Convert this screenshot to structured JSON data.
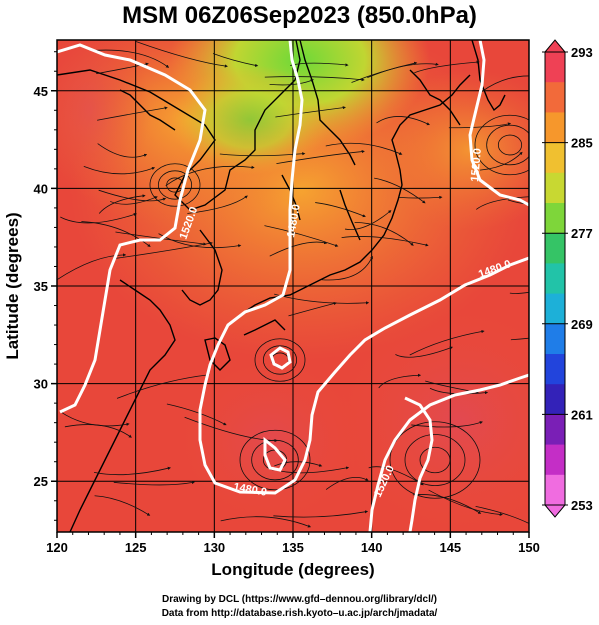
{
  "title": "MSM 06Z06Sep2023 (850.0hPa)",
  "axes": {
    "xlabel": "Longitude (degrees)",
    "ylabel": "Latitude  (degrees)",
    "xlim": [
      120,
      150
    ],
    "ylim": [
      22.4,
      47.6
    ],
    "xticks": [
      "120",
      "125",
      "130",
      "135",
      "140",
      "145",
      "150"
    ],
    "yticks": [
      "25",
      "30",
      "35",
      "40",
      "45"
    ]
  },
  "colorbar": {
    "min": 253,
    "max": 293,
    "labels": [
      "293",
      "285",
      "277",
      "269",
      "261",
      "253"
    ],
    "colors": [
      "#ef4155",
      "#f26a3a",
      "#f6972c",
      "#f0c030",
      "#c8d832",
      "#7ed63a",
      "#35c466",
      "#22c3a8",
      "#1db0d8",
      "#1f7de8",
      "#2244dc",
      "#3322b8",
      "#7a1fb6",
      "#c42ec6",
      "#f06ce0"
    ]
  },
  "contours": [
    {
      "label": "1520.0"
    },
    {
      "label": "1480.0"
    },
    {
      "label": "1480.0"
    },
    {
      "label": "1480.0"
    },
    {
      "label": "1520.0"
    },
    {
      "label": "1520.0"
    }
  ],
  "credits": [
    "Drawing by DCL (https://www.gfd–dennou.org/library/dcl/)",
    "Data from http://database.rish.kyoto–u.ac.jp/arch/jmadata/"
  ]
}
